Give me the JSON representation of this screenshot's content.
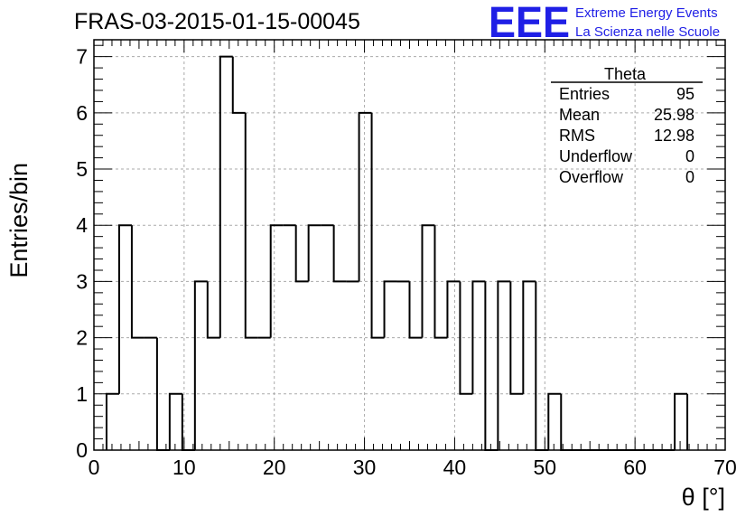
{
  "chart_data": {
    "type": "histogram",
    "title": "FRAS-03-2015-01-15-00045",
    "xlabel": "θ [°]",
    "ylabel": "Entries/bin",
    "xlim": [
      0,
      70
    ],
    "ylim": [
      0,
      7.3
    ],
    "xticks": [
      0,
      10,
      20,
      30,
      40,
      50,
      60,
      70
    ],
    "yticks": [
      0,
      1,
      2,
      3,
      4,
      5,
      6,
      7
    ],
    "grid": true,
    "bin_width": 1.4,
    "bin_start": 1.4,
    "values": [
      1,
      4,
      2,
      2,
      0,
      1,
      0,
      3,
      2,
      7,
      6,
      2,
      2,
      4,
      4,
      3,
      4,
      4,
      3,
      3,
      6,
      2,
      3,
      3,
      2,
      4,
      2,
      3,
      1,
      3,
      0,
      3,
      1,
      3,
      0,
      1,
      0,
      0,
      0,
      0,
      0,
      0,
      0,
      0,
      0,
      1
    ],
    "line_color": "#000000"
  },
  "stats_box": {
    "name": "Theta",
    "rows": [
      {
        "label": "Entries",
        "value": "95"
      },
      {
        "label": "Mean",
        "value": "25.98"
      },
      {
        "label": "RMS",
        "value": "12.98"
      },
      {
        "label": "Underflow",
        "value": "0"
      },
      {
        "label": "Overflow",
        "value": "0"
      }
    ]
  },
  "logo": {
    "mark": "EEE",
    "line1": "Extreme Energy Events",
    "line2": "La Scienza nelle Scuole",
    "color": "#1f1fe6"
  }
}
